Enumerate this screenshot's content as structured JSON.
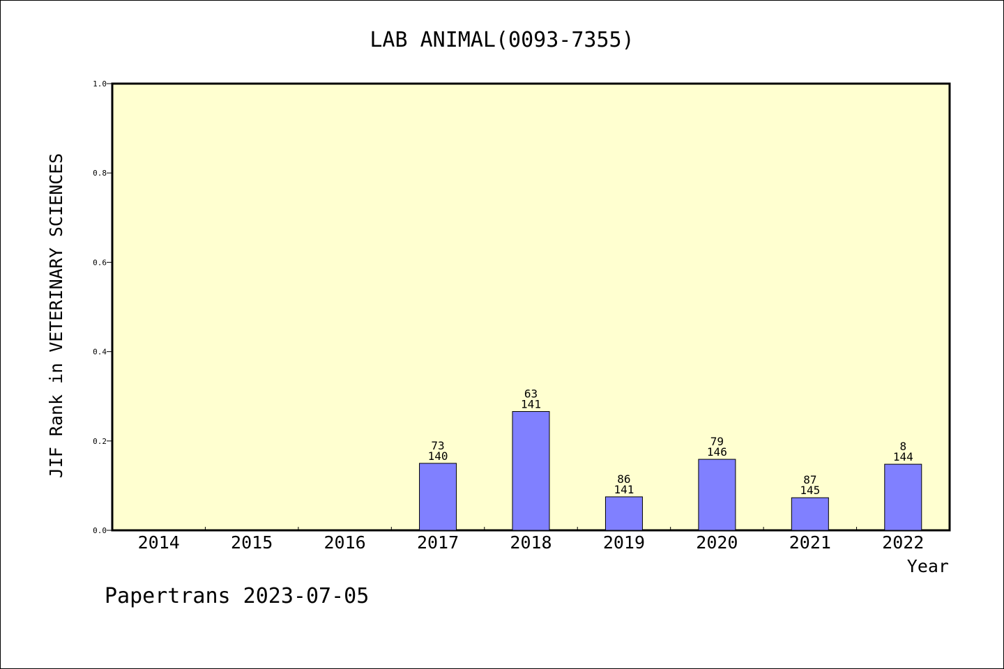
{
  "chart_data": {
    "type": "bar",
    "title": "LAB ANIMAL(0093-7355)",
    "xlabel": "Year",
    "ylabel": "JIF Rank in VETERINARY SCIENCES",
    "ylim": [
      0,
      1.0
    ],
    "yticks": [
      "0.0",
      "0.2",
      "0.4",
      "0.6",
      "0.8",
      "1.0"
    ],
    "grid": false,
    "categories": [
      "2014",
      "2015",
      "2016",
      "2017",
      "2018",
      "2019",
      "2020",
      "2021",
      "2022"
    ],
    "values": [
      null,
      null,
      null,
      0.15,
      0.266,
      0.075,
      0.159,
      0.073,
      0.148
    ],
    "bar_labels": [
      null,
      null,
      null,
      {
        "rank": "73",
        "total": "140"
      },
      {
        "rank": "63",
        "total": "141"
      },
      {
        "rank": "86",
        "total": "141"
      },
      {
        "rank": "79",
        "total": "146"
      },
      {
        "rank": "87",
        "total": "145"
      },
      {
        "rank": "8",
        "total": "144"
      }
    ],
    "colors": {
      "bar_fill": "#8080ff",
      "plot_background": "#ffffd0",
      "axis": "#000000"
    }
  },
  "footer": "Papertrans 2023-07-05"
}
